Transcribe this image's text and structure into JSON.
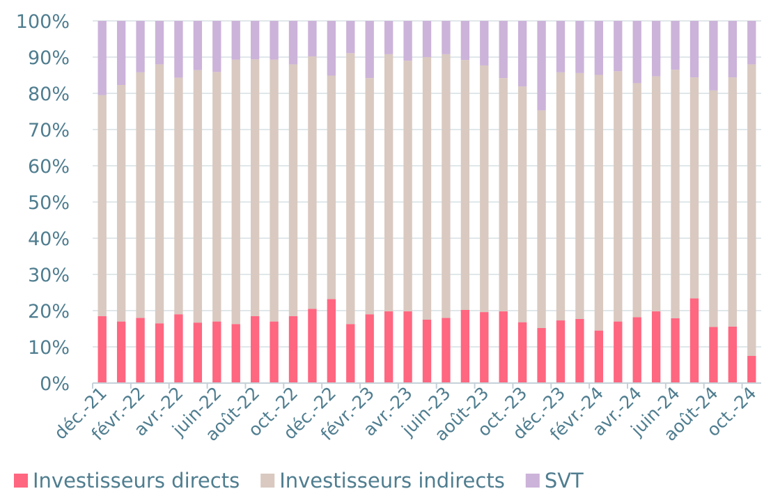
{
  "chart_data": {
    "type": "bar",
    "stacked": true,
    "title": "",
    "xlabel": "",
    "ylabel": "",
    "ylim": [
      0,
      100
    ],
    "y_ticks": [
      "0%",
      "10%",
      "20%",
      "30%",
      "40%",
      "50%",
      "60%",
      "70%",
      "80%",
      "90%",
      "100%"
    ],
    "grid": "horizontal",
    "legend_position": "bottom",
    "categories": [
      "déc.-21",
      "janv.-22",
      "févr.-22",
      "mars-22",
      "avr.-22",
      "mai-22",
      "juin-22",
      "juil.-22",
      "août-22",
      "sept.-22",
      "oct.-22",
      "nov.-22",
      "déc.-22",
      "janv.-23",
      "févr.-23",
      "mars-23",
      "avr.-23",
      "mai-23",
      "juin-23",
      "juil.-23",
      "août-23",
      "sept.-23",
      "oct.-23",
      "nov.-23",
      "déc.-23",
      "janv.-24",
      "févr.-24",
      "mars-24",
      "avr.-24",
      "mai-24",
      "juin-24",
      "juil.-24",
      "août-24",
      "sept.-24",
      "oct.-24"
    ],
    "x_tick_labels": [
      "déc.-21",
      "févr.-22",
      "avr.-22",
      "juin-22",
      "août-22",
      "oct.-22",
      "déc.-22",
      "févr.-23",
      "avr.-23",
      "juin-23",
      "août-23",
      "oct.-23",
      "déc.-23",
      "févr.-24",
      "avr.-24",
      "juin-24",
      "août-24",
      "oct.-24"
    ],
    "series": [
      {
        "name": "Investisseurs directs",
        "color": "#ff6680",
        "values": [
          18.5,
          17,
          18,
          16.5,
          19,
          16.7,
          17,
          16.3,
          18.5,
          17,
          18.5,
          20.5,
          23.2,
          16.3,
          19,
          19.8,
          19.8,
          17.5,
          18,
          20.2,
          19.6,
          19.8,
          16.8,
          15.2,
          17.3,
          17.7,
          14.5,
          17,
          18.2,
          19.8,
          17.9,
          23.4,
          15.5,
          15.6,
          7.5
        ]
      },
      {
        "name": "Investisseurs indirects",
        "color": "#d9c9c0",
        "values": [
          61,
          65.3,
          67.8,
          71.5,
          65.3,
          69.7,
          68.9,
          73,
          70.9,
          72.3,
          69.5,
          69.7,
          61.7,
          74.8,
          65.2,
          71,
          69.2,
          72.5,
          72.8,
          69,
          68.1,
          64.4,
          65.1,
          60.1,
          68.5,
          67.9,
          70.6,
          69.1,
          64.6,
          64.9,
          68.6,
          61,
          65.3,
          68.8,
          80.5
        ]
      },
      {
        "name": "SVT",
        "color": "#ccb3d9",
        "values": [
          20.5,
          17.7,
          14.2,
          12,
          15.7,
          13.6,
          14.1,
          10.7,
          10.6,
          10.7,
          12,
          9.8,
          15.1,
          8.9,
          15.8,
          9.2,
          11,
          10,
          9.2,
          10.8,
          12.3,
          15.8,
          18.1,
          24.7,
          14.2,
          14.4,
          14.9,
          13.9,
          17.2,
          15.3,
          13.5,
          15.6,
          19.2,
          15.6,
          12
        ]
      }
    ]
  }
}
